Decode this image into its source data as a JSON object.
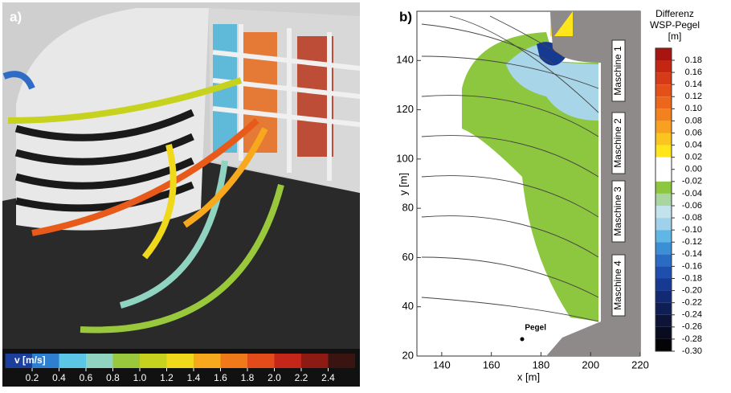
{
  "panel_a": {
    "label": "a)",
    "colorbar": {
      "title": "v [m/s]",
      "ticks": [
        0.2,
        0.4,
        0.6,
        0.8,
        {
          "value": 1,
          "label": "1.0"
        },
        1.2,
        1.4,
        1.6,
        1.8,
        {
          "value": 2,
          "label": "2.0"
        },
        2.2,
        2.4
      ],
      "colors": [
        "#1c3f9e",
        "#2f7fd0",
        "#5cc6e6",
        "#8fd3c0",
        "#9ac83c",
        "#c6d21e",
        "#f0d81a",
        "#f7a81c",
        "#f07a1a",
        "#e44b1a",
        "#c4261a",
        "#8e1a14",
        "#3a1410"
      ]
    }
  },
  "panel_b": {
    "label": "b)",
    "x_label": "x [m]",
    "y_label": "y [m]",
    "xlim": [
      130,
      220
    ],
    "xticks": [
      140,
      160,
      180,
      200,
      220
    ],
    "ylim": [
      20,
      160
    ],
    "yticks": [
      20,
      40,
      60,
      80,
      100,
      120,
      140
    ],
    "machines": [
      "Maschine 1",
      "Maschine 2",
      "Maschine 3",
      "Maschine 4"
    ],
    "gauge": "Pegel",
    "colorbar": {
      "title": [
        "Differenz",
        "WSP-Pegel",
        "[m]"
      ],
      "ticks": [
        0.18,
        0.16,
        0.14,
        0.12,
        {
          "value": 0.1,
          "label": "0.10"
        },
        0.08,
        0.06,
        0.04,
        0.02,
        {
          "value": 0,
          "label": "0.00"
        },
        -0.02,
        -0.04,
        -0.06,
        -0.08,
        {
          "value": -0.1,
          "label": "-0.10"
        },
        -0.12,
        -0.14,
        -0.16,
        -0.18,
        {
          "value": -0.2,
          "label": "-0.20"
        },
        -0.22,
        -0.24,
        -0.26,
        -0.28,
        {
          "value": -0.3,
          "label": "-0.30"
        }
      ],
      "colors": [
        "#a8140f",
        "#c42612",
        "#d63a16",
        "#e4501a",
        "#ec661c",
        "#f3821e",
        "#f8a020",
        "#fbc41e",
        "#ffe51a",
        "#ffffff",
        "#ffffff",
        "#8dc63f",
        "#a8d5a0",
        "#c3e3ec",
        "#9fd2ea",
        "#62b6e6",
        "#3b8fd6",
        "#2a6cc4",
        "#1e4fae",
        "#163a92",
        "#122a74",
        "#101e56",
        "#0d1438",
        "#090c1e",
        "#040406"
      ]
    }
  }
}
